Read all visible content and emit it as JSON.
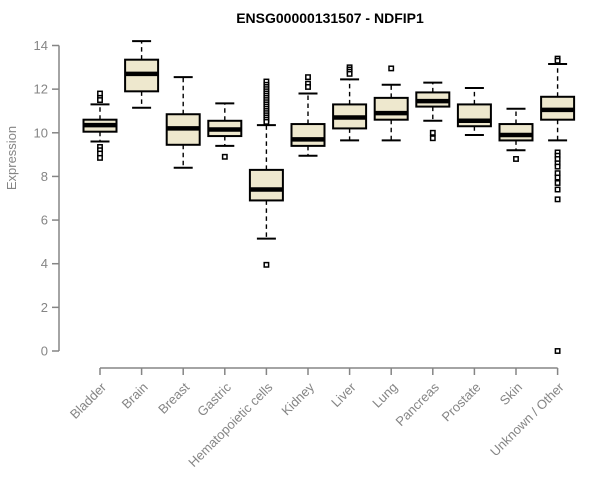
{
  "chart_data": {
    "type": "boxplot",
    "title": "ENSG00000131507 - NDFIP1",
    "ylabel": "Expression",
    "xlabel": "",
    "ylim": [
      0,
      14
    ],
    "yticks": [
      0,
      2,
      4,
      6,
      8,
      10,
      12,
      14
    ],
    "grid": false,
    "legend": "none",
    "categories": [
      "Bladder",
      "Brain",
      "Breast",
      "Gastric",
      "Hematopoietic cells",
      "Kidney",
      "Liver",
      "Lung",
      "Pancreas",
      "Prostate",
      "Skin",
      "Unknown / Other"
    ],
    "series": [
      {
        "name": "Bladder",
        "low": 9.6,
        "q1": 10.05,
        "median": 10.35,
        "q3": 10.6,
        "high": 11.3,
        "outliers": [
          11.8,
          11.6,
          11.5,
          9.35,
          9.2,
          9.05,
          8.85
        ]
      },
      {
        "name": "Brain",
        "low": 11.15,
        "q1": 11.9,
        "median": 12.7,
        "q3": 13.35,
        "high": 14.2,
        "outliers": []
      },
      {
        "name": "Breast",
        "low": 8.4,
        "q1": 9.45,
        "median": 10.2,
        "q3": 10.85,
        "high": 12.55,
        "outliers": []
      },
      {
        "name": "Gastric",
        "low": 9.4,
        "q1": 9.85,
        "median": 10.15,
        "q3": 10.55,
        "high": 11.35,
        "outliers": [
          8.9
        ]
      },
      {
        "name": "Hematopoietic cells",
        "low": 5.15,
        "q1": 6.9,
        "median": 7.4,
        "q3": 8.3,
        "high": 10.35,
        "outliers": [
          12.35,
          12.2,
          12.1,
          12.0,
          11.9,
          11.8,
          11.7,
          11.6,
          11.5,
          11.4,
          11.3,
          11.2,
          11.1,
          11.0,
          10.9,
          10.8,
          10.7,
          10.6,
          10.5,
          3.95
        ]
      },
      {
        "name": "Kidney",
        "low": 8.95,
        "q1": 9.4,
        "median": 9.7,
        "q3": 10.4,
        "high": 11.8,
        "outliers": [
          12.55,
          12.25,
          12.1
        ]
      },
      {
        "name": "Liver",
        "low": 9.65,
        "q1": 10.2,
        "median": 10.7,
        "q3": 11.3,
        "high": 12.45,
        "outliers": [
          13.0,
          12.9,
          12.8,
          12.7
        ]
      },
      {
        "name": "Lung",
        "low": 9.65,
        "q1": 10.6,
        "median": 10.9,
        "q3": 11.6,
        "high": 12.2,
        "outliers": [
          12.95
        ]
      },
      {
        "name": "Pancreas",
        "low": 10.55,
        "q1": 11.2,
        "median": 11.45,
        "q3": 11.85,
        "high": 12.3,
        "outliers": [
          10.0,
          9.75
        ]
      },
      {
        "name": "Prostate",
        "low": 9.9,
        "q1": 10.3,
        "median": 10.55,
        "q3": 11.3,
        "high": 12.05,
        "outliers": []
      },
      {
        "name": "Skin",
        "low": 9.2,
        "q1": 9.65,
        "median": 9.9,
        "q3": 10.4,
        "high": 11.1,
        "outliers": [
          8.8
        ]
      },
      {
        "name": "Unknown / Other",
        "low": 9.65,
        "q1": 10.6,
        "median": 11.05,
        "q3": 11.65,
        "high": 13.15,
        "outliers": [
          13.4,
          13.3,
          9.1,
          8.95,
          8.8,
          8.6,
          8.45,
          8.15,
          7.95,
          7.7,
          7.4,
          6.95,
          0
        ]
      }
    ],
    "style": {
      "box_fill": "#EEE8CE",
      "box_stroke": "#000000",
      "median_color": "#000000",
      "whisker_color": "#000000",
      "axis_color": "#858585",
      "tick_label_color": "#858585",
      "title_color": "#000000",
      "background": "#ffffff"
    }
  }
}
